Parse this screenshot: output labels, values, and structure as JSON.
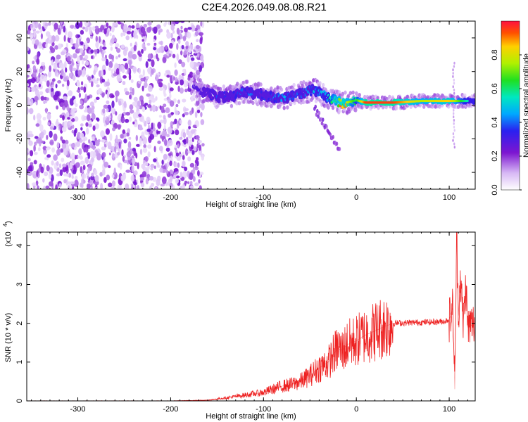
{
  "title": "C2E4.2026.049.08.08.R21",
  "chart_data": [
    {
      "type": "heatmap",
      "xlabel": "Height of straight line (km)",
      "ylabel": "Frequency (Hz)",
      "xlim": [
        -355,
        128
      ],
      "ylim": [
        -50,
        50
      ],
      "xticks": [
        -300,
        -200,
        -100,
        0,
        100
      ],
      "yticks": [
        -40,
        -20,
        0,
        20,
        40
      ],
      "colorbar": {
        "label": "Normalized spectral amplitude",
        "range": [
          0,
          1
        ],
        "ticks": [
          0.0,
          0.2,
          0.4,
          0.6,
          0.8
        ]
      },
      "noise_region_x": [
        -355,
        -165
      ],
      "ridge": [
        {
          "x": -175,
          "y": 12,
          "amp": 0.12
        },
        {
          "x": -165,
          "y": 8,
          "amp": 0.2
        },
        {
          "x": -150,
          "y": 5,
          "amp": 0.38
        },
        {
          "x": -135,
          "y": 5,
          "amp": 0.3
        },
        {
          "x": -120,
          "y": 8,
          "amp": 0.4
        },
        {
          "x": -100,
          "y": 6,
          "amp": 0.35
        },
        {
          "x": -80,
          "y": 4,
          "amp": 0.45
        },
        {
          "x": -60,
          "y": 7,
          "amp": 0.4
        },
        {
          "x": -45,
          "y": 9,
          "amp": 0.5
        },
        {
          "x": -30,
          "y": 4,
          "amp": 0.55
        },
        {
          "x": -15,
          "y": 1,
          "amp": 0.9
        },
        {
          "x": 0,
          "y": 3,
          "amp": 0.6
        },
        {
          "x": 10,
          "y": 1.5,
          "amp": 0.95
        },
        {
          "x": 40,
          "y": 1.5,
          "amp": 0.95
        },
        {
          "x": 70,
          "y": 2.5,
          "amp": 0.75
        },
        {
          "x": 100,
          "y": 2.5,
          "amp": 0.85
        },
        {
          "x": 120,
          "y": 2.5,
          "amp": 0.55
        }
      ]
    },
    {
      "type": "line",
      "xlabel": "Height of straight line (km)",
      "ylabel": "SNR (10 * v/v)",
      "ylabel_scale": "(x10",
      "ylabel_scale_exp": "4",
      "xlim": [
        -355,
        128
      ],
      "ylim": [
        0,
        4.35
      ],
      "xticks": [
        -300,
        -200,
        -100,
        0,
        100
      ],
      "yticks": [
        0,
        1,
        2,
        3,
        4
      ],
      "series": [
        {
          "color": "#ee2222",
          "x": [
            -355,
            -200,
            -160,
            -140,
            -120,
            -100,
            -90,
            -80,
            -70,
            -60,
            -50,
            -40,
            -30,
            -25,
            -20,
            -15,
            -10,
            0,
            10,
            20,
            30,
            40,
            60,
            80,
            95,
            100,
            104,
            106,
            108,
            110,
            112,
            115,
            118,
            120,
            128
          ],
          "y": [
            0.0,
            0.0,
            0.02,
            0.08,
            0.15,
            0.22,
            0.3,
            0.38,
            0.42,
            0.5,
            0.65,
            0.85,
            1.0,
            1.2,
            1.35,
            1.3,
            1.45,
            1.55,
            1.7,
            1.8,
            1.92,
            2.0,
            2.02,
            2.03,
            2.05,
            2.1,
            2.4,
            0.3,
            4.3,
            2.2,
            3.2,
            2.0,
            3.0,
            1.9,
            2.0
          ]
        }
      ]
    }
  ]
}
